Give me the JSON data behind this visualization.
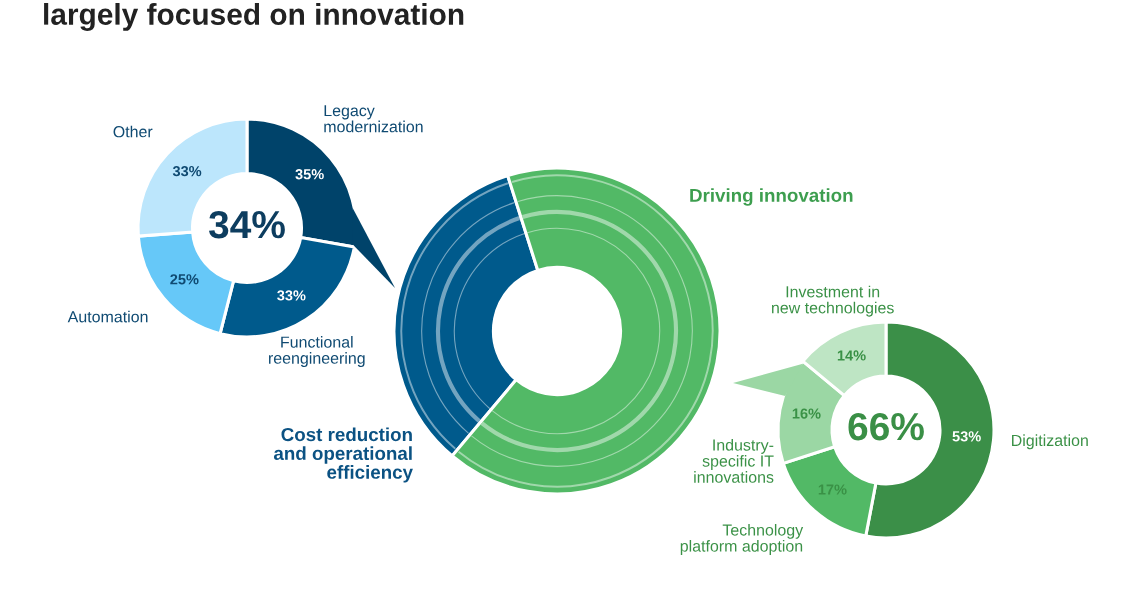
{
  "chart_data": [
    {
      "type": "donut",
      "title": "largely focused on innovation",
      "categories": [
        "Legacy\nmodernization",
        "Functional\nreengineering",
        "Automation",
        "Other"
      ],
      "values": [
        35,
        33,
        25,
        33
      ],
      "value_labels": [
        "35%",
        "33%",
        "25%",
        "33%"
      ],
      "colors": [
        "#00436a",
        "#005a8c",
        "#66c8f8",
        "#bce6fc"
      ],
      "annotations": [
        "34%"
      ]
    },
    {
      "type": "donut",
      "categories": [
        "Cost reduction\nand operational\nefficiency",
        "Driving innovation"
      ],
      "values": [
        34,
        66
      ],
      "colors": [
        "#005a8c",
        "#52b966"
      ]
    },
    {
      "type": "donut",
      "categories": [
        "Digitization",
        "Technology\nplatform adoption",
        "Industry-\nspecific IT\ninnovations",
        "Investment in\nnew technologies"
      ],
      "values": [
        53,
        17,
        16,
        14
      ],
      "value_labels": [
        "53%",
        "17%",
        "16%",
        "14%"
      ],
      "colors": [
        "#3b8f48",
        "#52b966",
        "#9bd7a4",
        "#bee5c4"
      ],
      "annotations": [
        "66%"
      ]
    }
  ]
}
